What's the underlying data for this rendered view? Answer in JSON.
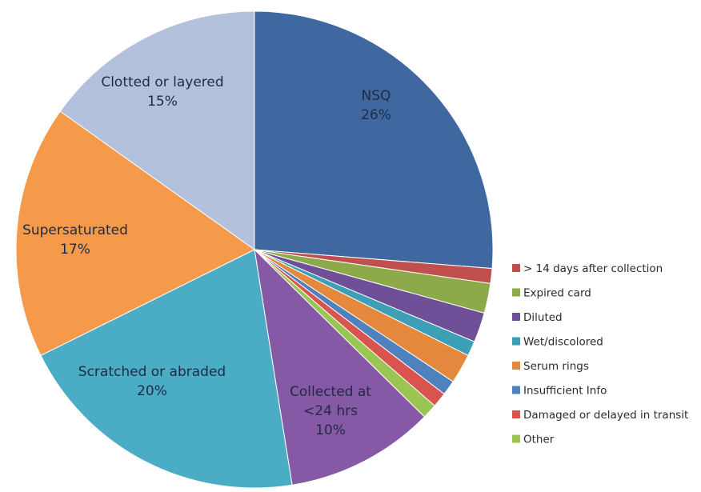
{
  "chart_data": {
    "type": "pie",
    "title": "",
    "legend_position": "right",
    "slices": [
      {
        "name": "NSQ",
        "value": 26,
        "color": "#4068a0",
        "label_lines": [
          "NSQ",
          "26%"
        ]
      },
      {
        "name": "> 14 days after collection",
        "value": 1,
        "color": "#c0504d",
        "label_lines": []
      },
      {
        "name": "Expired card",
        "value": 2,
        "color": "#8caa49",
        "label_lines": []
      },
      {
        "name": "Diluted",
        "value": 2,
        "color": "#6f4f98",
        "label_lines": []
      },
      {
        "name": "Wet/discolored",
        "value": 1,
        "color": "#3c9fb6",
        "label_lines": []
      },
      {
        "name": "Serum rings",
        "value": 2,
        "color": "#e4883d",
        "label_lines": []
      },
      {
        "name": "Insufficient Info",
        "value": 1,
        "color": "#4f81bd",
        "label_lines": []
      },
      {
        "name": "Damaged or delayed in transit",
        "value": 1,
        "color": "#d9534f",
        "label_lines": []
      },
      {
        "name": "Other",
        "value": 1,
        "color": "#9bc552",
        "label_lines": []
      },
      {
        "name": "Collected at <24 hrs",
        "value": 10,
        "color": "#8559a5",
        "label_lines": [
          "Collected at",
          "<24 hrs",
          "10%"
        ]
      },
      {
        "name": "Scratched or abraded",
        "value": 20,
        "color": "#4bacc6",
        "label_lines": [
          "Scratched or abraded",
          "20%"
        ]
      },
      {
        "name": "Supersaturated",
        "value": 17,
        "color": "#f49a4a",
        "label_lines": [
          "Supersaturated",
          "17%"
        ]
      },
      {
        "name": "Clotted or layered",
        "value": 15,
        "color": "#b4c1dd",
        "label_lines": [
          "Clotted or layered",
          "15%"
        ]
      }
    ],
    "legend": [
      {
        "label": "> 14 days after collection",
        "color": "#c0504d"
      },
      {
        "label": "Expired card",
        "color": "#8caa49"
      },
      {
        "label": "Diluted",
        "color": "#6f4f98"
      },
      {
        "label": "Wet/discolored",
        "color": "#3c9fb6"
      },
      {
        "label": "Serum rings",
        "color": "#e4883d"
      },
      {
        "label": "Insufficient Info",
        "color": "#4f81bd"
      },
      {
        "label": "Damaged or delayed in transit",
        "color": "#d9534f"
      },
      {
        "label": "Other",
        "color": "#9bc552"
      }
    ]
  }
}
